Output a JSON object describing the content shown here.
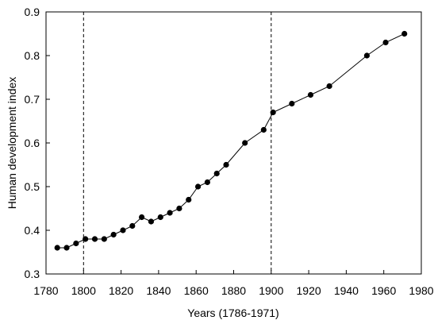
{
  "chart_data": {
    "type": "line",
    "title": "",
    "xlabel": "Years (1786-1971)",
    "ylabel": "Human development index",
    "xlim": [
      1780,
      1980
    ],
    "ylim": [
      0.3,
      0.9
    ],
    "x_ticks": [
      1780,
      1800,
      1820,
      1840,
      1860,
      1880,
      1900,
      1920,
      1940,
      1960,
      1980
    ],
    "y_ticks": [
      0.3,
      0.4,
      0.5,
      0.6,
      0.7,
      0.8,
      0.9
    ],
    "x_tick_labels": [
      "1780",
      "1800",
      "1820",
      "1840",
      "1860",
      "1880",
      "1900",
      "1920",
      "1940",
      "1960",
      "1980"
    ],
    "y_tick_labels": [
      "0.3",
      "0.4",
      "0.5",
      "0.6",
      "0.7",
      "0.8",
      "0.9"
    ],
    "reference_lines_x": [
      1800,
      1900
    ],
    "grid": false,
    "legend": "none",
    "series": [
      {
        "x": [
          1786,
          1791,
          1796,
          1801,
          1806,
          1811,
          1816,
          1821,
          1826,
          1831,
          1836,
          1841,
          1846,
          1851,
          1856,
          1861,
          1866,
          1871,
          1876,
          1886,
          1896,
          1901,
          1911,
          1921,
          1931,
          1951,
          1961,
          1971
        ],
        "values": [
          0.36,
          0.36,
          0.37,
          0.38,
          0.38,
          0.38,
          0.39,
          0.4,
          0.41,
          0.43,
          0.42,
          0.43,
          0.44,
          0.45,
          0.47,
          0.5,
          0.51,
          0.53,
          0.55,
          0.6,
          0.63,
          0.67,
          0.69,
          0.71,
          0.73,
          0.8,
          0.83,
          0.85
        ]
      }
    ]
  }
}
